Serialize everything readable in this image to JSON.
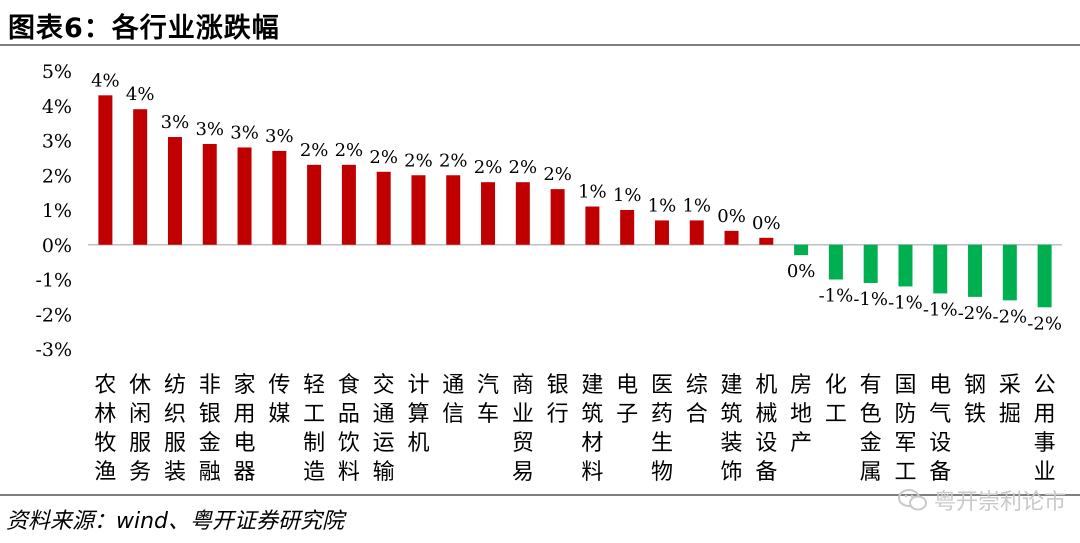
{
  "header": {
    "title": "图表6：各行业涨跌幅"
  },
  "footer": {
    "source": "资料来源：wind、粤开证券研究院"
  },
  "watermark": {
    "text": "粤开崇利论市"
  },
  "colors": {
    "positive": "#c00000",
    "negative": "#00b050",
    "axis": "#bfbfbf"
  },
  "chart_data": {
    "type": "bar",
    "title": "",
    "xlabel": "",
    "ylabel": "",
    "ylim": [
      -0.03,
      0.05
    ],
    "yticks": [
      "5%",
      "4%",
      "3%",
      "2%",
      "1%",
      "0%",
      "-1%",
      "-2%",
      "-3%"
    ],
    "ytick_values": [
      0.05,
      0.04,
      0.03,
      0.02,
      0.01,
      0.0,
      -0.01,
      -0.02,
      -0.03
    ],
    "categories": [
      "农林牧渔",
      "休闲服务",
      "纺织服装",
      "非银金融",
      "家用电器",
      "传媒",
      "轻工制造",
      "食品饮料",
      "交通运输",
      "计算机",
      "通信",
      "汽车",
      "商业贸易",
      "银行",
      "建筑材料",
      "电子",
      "医药生物",
      "综合",
      "建筑装饰",
      "机械设备",
      "房地产",
      "化工",
      "有色金属",
      "国防军工",
      "电气设备",
      "钢铁",
      "采掘",
      "公用事业"
    ],
    "values": [
      0.043,
      0.039,
      0.031,
      0.029,
      0.028,
      0.027,
      0.023,
      0.023,
      0.021,
      0.02,
      0.02,
      0.018,
      0.018,
      0.016,
      0.011,
      0.01,
      0.007,
      0.007,
      0.004,
      0.002,
      -0.003,
      -0.01,
      -0.011,
      -0.012,
      -0.014,
      -0.015,
      -0.016,
      -0.018
    ],
    "data_labels": [
      "4%",
      "4%",
      "3%",
      "3%",
      "3%",
      "3%",
      "2%",
      "2%",
      "2%",
      "2%",
      "2%",
      "2%",
      "2%",
      "2%",
      "1%",
      "1%",
      "1%",
      "1%",
      "0%",
      "0%",
      "0%",
      "-1%",
      "-1%",
      "-1%",
      "-1%",
      "-2%",
      "-2%",
      "-2%"
    ],
    "grid": false,
    "legend": "none"
  }
}
